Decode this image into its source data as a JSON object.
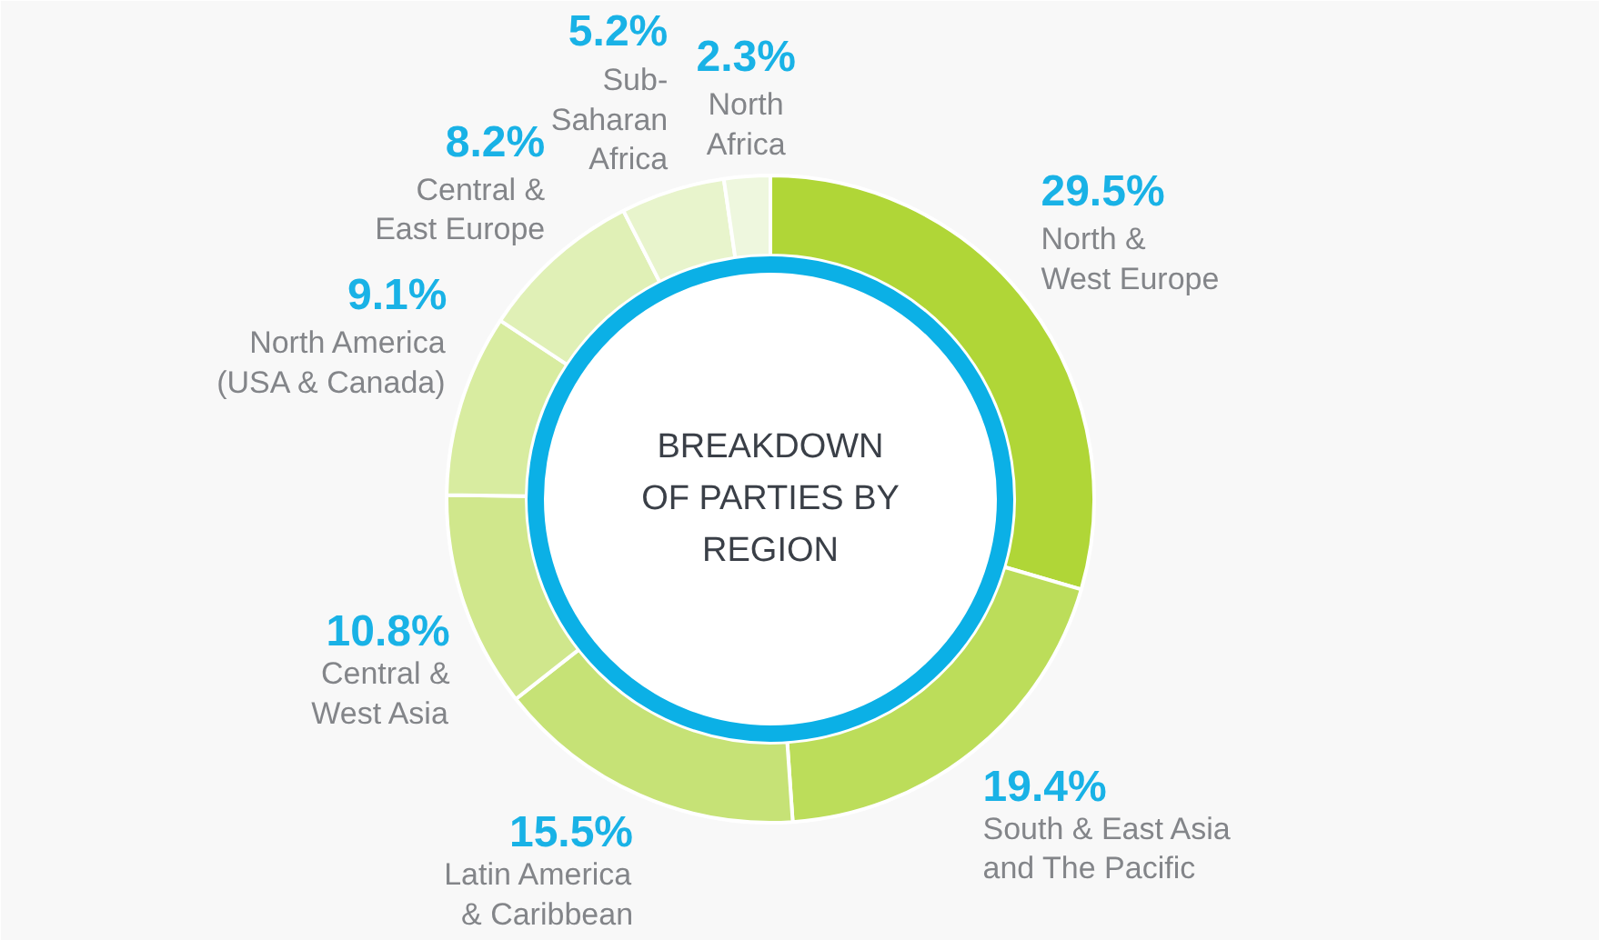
{
  "chart_data": {
    "type": "donut",
    "title": "BREAKDOWN\nOF PARTIES BY\nREGION",
    "categories": [
      "North &\nWest Europe",
      "South & East Asia\nand The Pacific",
      "Latin America\n& Caribbean",
      "Central &\nWest Asia",
      "North America\n(USA & Canada)",
      "Central &\nEast Europe",
      "Sub-\nSaharan\nAfrica",
      "North\nAfrica"
    ],
    "values": [
      29.5,
      19.4,
      15.5,
      10.8,
      9.1,
      8.2,
      5.2,
      2.3
    ],
    "value_labels": [
      "29.5%",
      "19.4%",
      "15.5%",
      "10.8%",
      "9.1%",
      "8.2%",
      "5.2%",
      "2.3%"
    ],
    "colors": [
      "#b0d637",
      "#bcdd5a",
      "#c6e276",
      "#d0e78c",
      "#d8eca0",
      "#e0f0b6",
      "#e8f4cc",
      "#eef7de"
    ]
  }
}
